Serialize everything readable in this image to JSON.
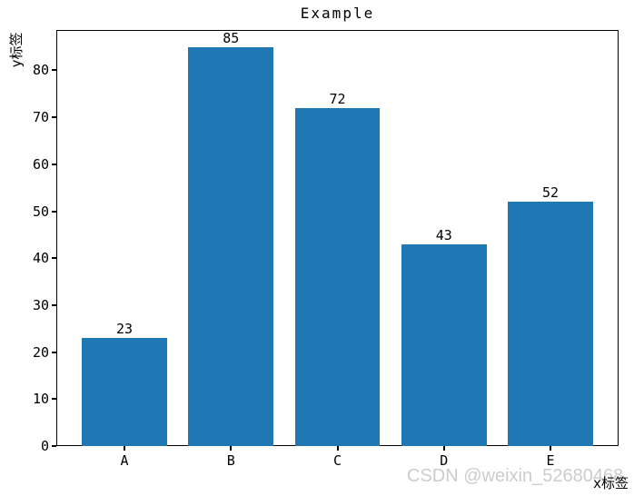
{
  "chart_data": {
    "type": "bar",
    "title": "Example",
    "categories": [
      "A",
      "B",
      "C",
      "D",
      "E"
    ],
    "values": [
      23,
      85,
      72,
      43,
      52
    ],
    "bar_value_labels": [
      "23",
      "85",
      "72",
      "43",
      "52"
    ],
    "xlabel": "x标签",
    "ylabel": "y标签",
    "ylim": [
      0,
      88.6
    ],
    "yticks": [
      0,
      10,
      20,
      30,
      40,
      50,
      60,
      70,
      80
    ],
    "bar_color": "#1f77b4",
    "grid": false,
    "legend_position": "none"
  },
  "watermark": {
    "text": "CSDN @weixin_52680468",
    "color": "#cccccc"
  },
  "colors": {
    "background": "#ffffff",
    "axis": "#000000",
    "text": "#000000"
  }
}
